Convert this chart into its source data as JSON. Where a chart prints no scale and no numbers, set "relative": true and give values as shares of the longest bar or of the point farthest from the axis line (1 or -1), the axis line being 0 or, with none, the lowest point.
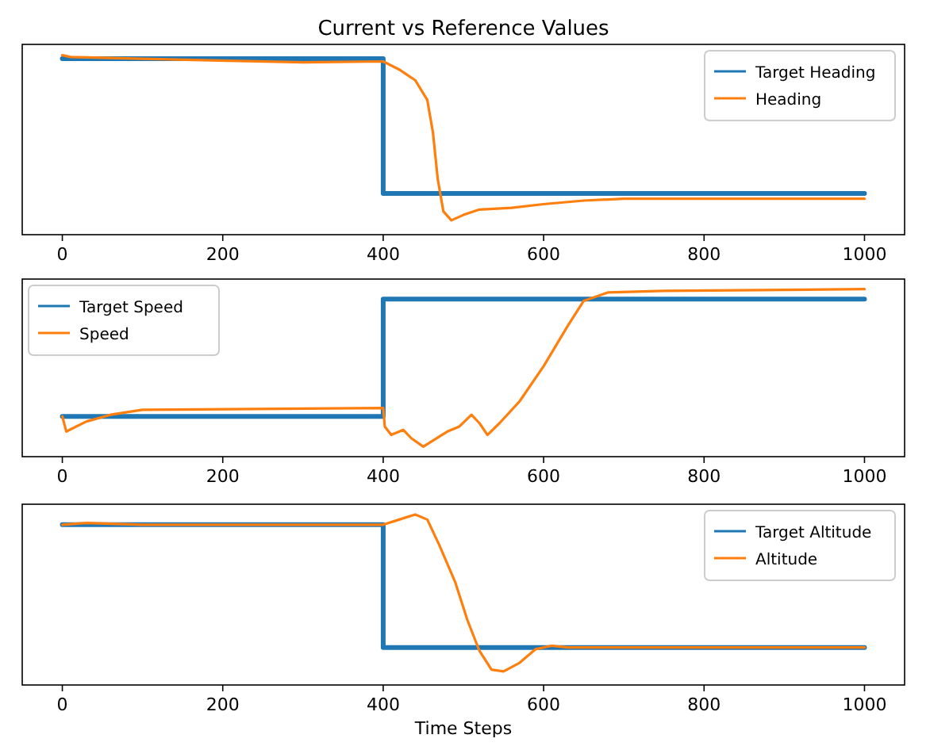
{
  "chart_data": [
    {
      "type": "line",
      "title": "Current vs Reference Values",
      "relative": true,
      "xlim": [
        -50,
        1050
      ],
      "xticks": [
        0,
        200,
        400,
        600,
        800,
        1000
      ],
      "legend": "top right",
      "series": [
        {
          "name": "Target Heading",
          "color": "#1f77b4",
          "x": [
            0,
            400,
            400,
            1000
          ],
          "values": [
            0.98,
            0.98,
            0.23,
            0.23
          ]
        },
        {
          "name": "Heading",
          "color": "#ff7f0e",
          "x": [
            0,
            10,
            100,
            300,
            400,
            420,
            440,
            455,
            462,
            468,
            475,
            485,
            500,
            520,
            560,
            600,
            650,
            700,
            1000
          ],
          "values": [
            1.0,
            0.99,
            0.98,
            0.96,
            0.965,
            0.92,
            0.86,
            0.75,
            0.57,
            0.31,
            0.13,
            0.08,
            0.11,
            0.14,
            0.15,
            0.17,
            0.19,
            0.2,
            0.2
          ]
        }
      ]
    },
    {
      "type": "line",
      "relative": true,
      "xlim": [
        -50,
        1050
      ],
      "xticks": [
        0,
        200,
        400,
        600,
        800,
        1000
      ],
      "legend": "top left",
      "series": [
        {
          "name": "Target Speed",
          "color": "#1f77b4",
          "x": [
            0,
            400,
            400,
            1000
          ],
          "values": [
            0.24,
            0.24,
            0.94,
            0.94
          ]
        },
        {
          "name": "Speed",
          "color": "#ff7f0e",
          "x": [
            0,
            5,
            30,
            60,
            100,
            400,
            402,
            410,
            425,
            435,
            450,
            470,
            480,
            495,
            510,
            520,
            530,
            545,
            570,
            600,
            630,
            650,
            680,
            750,
            1000
          ],
          "values": [
            0.24,
            0.15,
            0.21,
            0.25,
            0.28,
            0.29,
            0.18,
            0.13,
            0.16,
            0.11,
            0.06,
            0.12,
            0.15,
            0.18,
            0.25,
            0.2,
            0.13,
            0.2,
            0.33,
            0.54,
            0.78,
            0.93,
            0.98,
            0.99,
            1.0
          ]
        }
      ]
    },
    {
      "type": "line",
      "xlabel": "Time Steps",
      "relative": true,
      "xlim": [
        -50,
        1050
      ],
      "xticks": [
        0,
        200,
        400,
        600,
        800,
        1000
      ],
      "legend": "top right",
      "series": [
        {
          "name": "Target Altitude",
          "color": "#1f77b4",
          "x": [
            0,
            400,
            400,
            1000
          ],
          "values": [
            0.94,
            0.94,
            0.22,
            0.22
          ]
        },
        {
          "name": "Altitude",
          "color": "#ff7f0e",
          "x": [
            0,
            30,
            100,
            400,
            420,
            440,
            455,
            470,
            490,
            505,
            520,
            535,
            550,
            570,
            590,
            610,
            630,
            1000
          ],
          "values": [
            0.94,
            0.95,
            0.94,
            0.94,
            0.97,
            1.0,
            0.97,
            0.82,
            0.6,
            0.38,
            0.2,
            0.09,
            0.08,
            0.13,
            0.21,
            0.23,
            0.22,
            0.22
          ]
        }
      ]
    }
  ]
}
